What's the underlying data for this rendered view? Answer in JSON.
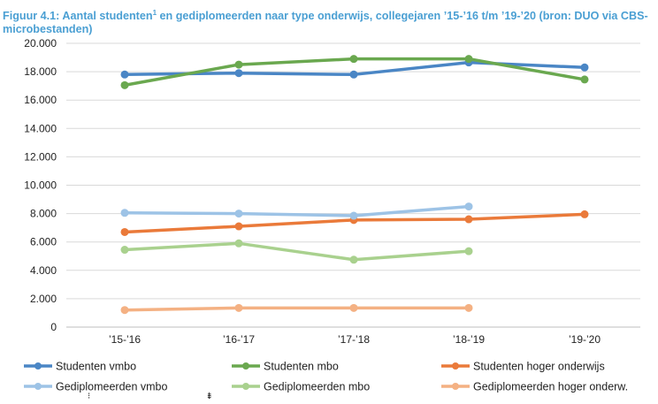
{
  "title": {
    "main": "Figuur 4.1: Aantal studenten",
    "footnote_marker": "1",
    "rest": " en gediplomeerden naar type onderwijs, collegejaren ’15-’16 t/m ’19-’20 (bron: DUO via CBS-microbestanden)"
  },
  "chart_data": {
    "type": "line",
    "categories": [
      "’15-’16",
      "’16-’17",
      "’17-’18",
      "’18-’19",
      "’19-’20"
    ],
    "ylim": [
      0,
      20000
    ],
    "yticks": [
      0,
      2000,
      4000,
      6000,
      8000,
      10000,
      12000,
      14000,
      16000,
      18000,
      20000
    ],
    "ytick_labels": [
      "0",
      "2.000",
      "4.000",
      "6.000",
      "8.000",
      "10.000",
      "12.000",
      "14.000",
      "16.000",
      "18.000",
      "20.000"
    ],
    "grid": true,
    "legend_position": "bottom",
    "series": [
      {
        "name": "Studenten vmbo",
        "color": "#4a86c5",
        "values": [
          17800,
          17900,
          17800,
          18650,
          18300
        ]
      },
      {
        "name": "Studenten mbo",
        "color": "#6aa84f",
        "values": [
          17050,
          18500,
          18900,
          18900,
          17450
        ]
      },
      {
        "name": "Studenten hoger onderwijs",
        "color": "#ea7a3a",
        "values": [
          6700,
          7100,
          7550,
          7600,
          7950
        ]
      },
      {
        "name": "Gediplomeerden vmbo",
        "color": "#9dc3e6",
        "values": [
          8050,
          8000,
          7850,
          8500,
          null
        ]
      },
      {
        "name": "Gediplomeerden mbo",
        "color": "#a9d18e",
        "values": [
          5450,
          5900,
          4750,
          5350,
          null
        ]
      },
      {
        "name": "Gediplomeerden hoger onderw.",
        "color": "#f4b183",
        "values": [
          1200,
          1350,
          1350,
          1350,
          null
        ]
      }
    ]
  }
}
